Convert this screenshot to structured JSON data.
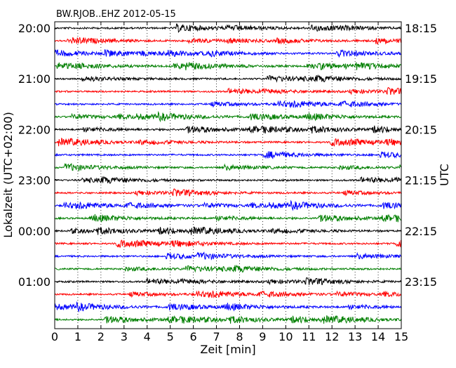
{
  "chart_data": {
    "type": "line",
    "title": "BW.RJOB..EHZ 2012-05-15",
    "xlabel": "Zeit  [min]",
    "ylabel_left": "Lokalzeit (UTC+02:00)",
    "ylabel_right": "UTC",
    "xlim": [
      0,
      15
    ],
    "x_ticks": [
      0,
      1,
      2,
      3,
      4,
      5,
      6,
      7,
      8,
      9,
      10,
      11,
      12,
      13,
      14,
      15
    ],
    "x_tick_labels": [
      "0",
      "1",
      "2",
      "3",
      "4",
      "5",
      "6",
      "7",
      "8",
      "9",
      "10",
      "11",
      "12",
      "13",
      "14",
      "15"
    ],
    "grid": {
      "x": true,
      "y": false,
      "style": "dotted"
    },
    "trace_count": 24,
    "trace_colors": [
      "#000000",
      "#ff0000",
      "#0000ff",
      "#007f00"
    ],
    "left_tick_labels": [
      "20:00",
      "21:00",
      "22:00",
      "23:00",
      "00:00",
      "01:00"
    ],
    "left_tick_trace_index": [
      0,
      4,
      8,
      12,
      16,
      20
    ],
    "right_tick_labels": [
      "18:15",
      "19:15",
      "20:15",
      "21:15",
      "22:15",
      "23:15"
    ],
    "right_tick_trace_index": [
      0,
      4,
      8,
      12,
      16,
      20
    ]
  }
}
